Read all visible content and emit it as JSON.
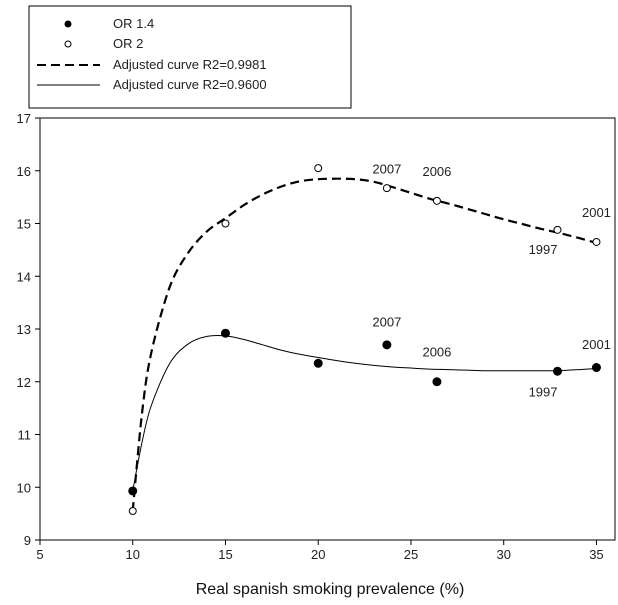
{
  "chart_data": {
    "type": "scatter",
    "title": "",
    "xlabel": "Real spanish smoking prevalence (%)",
    "ylabel": "",
    "xlim": [
      5,
      36
    ],
    "ylim": [
      9,
      17
    ],
    "x_ticks": [
      5,
      10,
      15,
      20,
      25,
      30,
      35
    ],
    "y_ticks": [
      9,
      10,
      11,
      12,
      13,
      14,
      15,
      16,
      17
    ],
    "grid": false,
    "legend_position": "top-left, outside above plot",
    "series": [
      {
        "name": "OR 1.4",
        "marker": "filled-circle",
        "color": "#000000",
        "points": [
          {
            "x": 10.0,
            "y": 9.93
          },
          {
            "x": 15.0,
            "y": 12.92
          },
          {
            "x": 20.0,
            "y": 12.35
          },
          {
            "x": 23.7,
            "y": 12.7
          },
          {
            "x": 26.4,
            "y": 12.0
          },
          {
            "x": 32.9,
            "y": 12.2
          },
          {
            "x": 35.0,
            "y": 12.27
          }
        ]
      },
      {
        "name": "OR 2",
        "marker": "open-circle",
        "color": "#000000",
        "points": [
          {
            "x": 10.0,
            "y": 9.55
          },
          {
            "x": 15.0,
            "y": 15.0
          },
          {
            "x": 20.0,
            "y": 16.05
          },
          {
            "x": 23.7,
            "y": 15.67
          },
          {
            "x": 26.4,
            "y": 15.43
          },
          {
            "x": 32.9,
            "y": 14.88
          },
          {
            "x": 35.0,
            "y": 14.65
          }
        ]
      }
    ],
    "curves": [
      {
        "name": "Adjusted curve  R2=0.9981",
        "style": "dashed",
        "color": "#000000",
        "points": [
          [
            10.0,
            9.55
          ],
          [
            10.5,
            11.4
          ],
          [
            11.0,
            12.55
          ],
          [
            12.0,
            13.8
          ],
          [
            13.0,
            14.45
          ],
          [
            14.0,
            14.85
          ],
          [
            15.0,
            15.1
          ],
          [
            16.0,
            15.35
          ],
          [
            17.0,
            15.55
          ],
          [
            18.0,
            15.7
          ],
          [
            19.0,
            15.8
          ],
          [
            20.0,
            15.84
          ],
          [
            21.0,
            15.85
          ],
          [
            22.0,
            15.84
          ],
          [
            23.0,
            15.79
          ],
          [
            24.0,
            15.69
          ],
          [
            25.0,
            15.58
          ],
          [
            26.0,
            15.47
          ],
          [
            27.0,
            15.38
          ],
          [
            28.0,
            15.28
          ],
          [
            29.0,
            15.18
          ],
          [
            30.0,
            15.08
          ],
          [
            31.0,
            14.99
          ],
          [
            32.0,
            14.9
          ],
          [
            33.0,
            14.82
          ],
          [
            34.0,
            14.73
          ],
          [
            35.0,
            14.63
          ]
        ]
      },
      {
        "name": "Adjusted curve  R2=0.9600",
        "style": "solid",
        "color": "#000000",
        "points": [
          [
            10.0,
            9.93
          ],
          [
            10.5,
            10.85
          ],
          [
            11.0,
            11.55
          ],
          [
            12.0,
            12.35
          ],
          [
            13.0,
            12.72
          ],
          [
            14.0,
            12.86
          ],
          [
            15.0,
            12.87
          ],
          [
            16.0,
            12.8
          ],
          [
            17.0,
            12.7
          ],
          [
            18.0,
            12.6
          ],
          [
            19.0,
            12.52
          ],
          [
            20.0,
            12.46
          ],
          [
            21.0,
            12.4
          ],
          [
            22.0,
            12.35
          ],
          [
            23.0,
            12.31
          ],
          [
            24.0,
            12.28
          ],
          [
            25.0,
            12.26
          ],
          [
            26.0,
            12.24
          ],
          [
            27.0,
            12.23
          ],
          [
            28.0,
            12.22
          ],
          [
            29.0,
            12.21
          ],
          [
            30.0,
            12.21
          ],
          [
            31.0,
            12.21
          ],
          [
            32.0,
            12.21
          ],
          [
            33.0,
            12.21
          ],
          [
            34.0,
            12.23
          ],
          [
            35.0,
            12.25
          ]
        ]
      }
    ],
    "annotations": [
      {
        "text": "2007",
        "x": 23.7,
        "y": 15.95,
        "anchor": "middle"
      },
      {
        "text": "2006",
        "x": 26.4,
        "y": 15.9,
        "anchor": "middle"
      },
      {
        "text": "2001",
        "x": 35.0,
        "y": 15.12,
        "anchor": "middle"
      },
      {
        "text": "1997",
        "x": 32.9,
        "y": 14.42,
        "anchor": "end"
      },
      {
        "text": "2007",
        "x": 23.7,
        "y": 13.05,
        "anchor": "middle"
      },
      {
        "text": "2006",
        "x": 26.4,
        "y": 12.48,
        "anchor": "middle"
      },
      {
        "text": "2001",
        "x": 35.0,
        "y": 12.62,
        "anchor": "middle"
      },
      {
        "text": "1997",
        "x": 32.9,
        "y": 11.72,
        "anchor": "end"
      }
    ],
    "legend": [
      {
        "label": "OR 1.4",
        "kind": "filled-circle"
      },
      {
        "label": "OR 2",
        "kind": "open-circle"
      },
      {
        "label": "Adjusted curve  R2=0.9981",
        "kind": "dashed"
      },
      {
        "label": "Adjusted curve  R2=0.9600",
        "kind": "solid"
      }
    ]
  }
}
